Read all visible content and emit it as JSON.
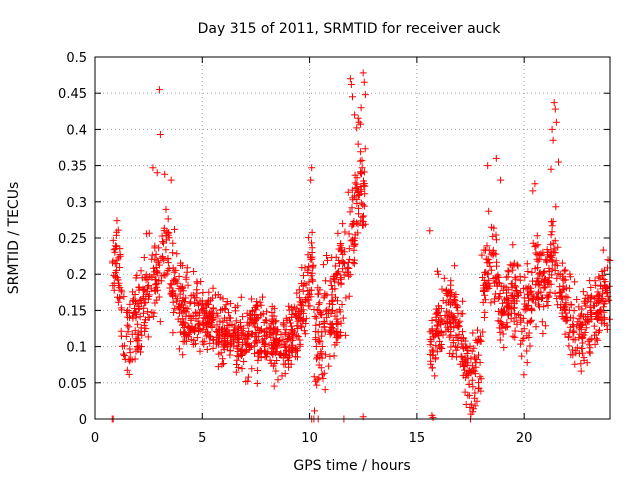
{
  "chart_data": {
    "type": "scatter",
    "title": "Day 315 of 2011, SRMTID for receiver auck",
    "xlabel": "GPS time / hours",
    "ylabel": "SRMTID / TECUs",
    "xlim": [
      0,
      24
    ],
    "ylim": [
      0,
      0.5
    ],
    "xticks": [
      0,
      5,
      10,
      15,
      20
    ],
    "xtick_labels": [
      "0",
      "5",
      "10",
      "15",
      "20"
    ],
    "yticks": [
      0,
      0.05,
      0.1,
      0.15,
      0.2,
      0.25,
      0.3,
      0.35,
      0.4,
      0.45,
      0.5
    ],
    "ytick_labels": [
      "0",
      "0.05",
      "0.1",
      "0.15",
      "0.2",
      "0.25",
      "0.3",
      "0.35",
      "0.4",
      "0.45",
      "0.5"
    ],
    "grid": true,
    "marker": "+",
    "color": "#ff0000",
    "series": [
      {
        "name": "SRMTID",
        "segments": [
          {
            "start": 0.8,
            "end": 4.0,
            "profile": [
              [
                0.8,
                0.2
              ],
              [
                1.0,
                0.22
              ],
              [
                1.3,
                0.15
              ],
              [
                1.6,
                0.12
              ],
              [
                2.0,
                0.15
              ],
              [
                2.5,
                0.18
              ],
              [
                3.0,
                0.2
              ],
              [
                3.3,
                0.25
              ],
              [
                3.6,
                0.2
              ],
              [
                4.0,
                0.16
              ]
            ],
            "n": 260,
            "spread": 0.06
          },
          {
            "start": 4.0,
            "end": 10.2,
            "profile": [
              [
                4.0,
                0.15
              ],
              [
                5.0,
                0.14
              ],
              [
                6.0,
                0.12
              ],
              [
                7.0,
                0.11
              ],
              [
                8.0,
                0.12
              ],
              [
                9.0,
                0.1
              ],
              [
                9.6,
                0.14
              ],
              [
                10.0,
                0.2
              ],
              [
                10.2,
                0.22
              ]
            ],
            "n": 620,
            "spread": 0.045
          },
          {
            "start": 10.2,
            "end": 12.6,
            "profile": [
              [
                10.2,
                0.1
              ],
              [
                10.6,
                0.12
              ],
              [
                11.0,
                0.15
              ],
              [
                11.5,
                0.2
              ],
              [
                12.0,
                0.26
              ],
              [
                12.3,
                0.32
              ],
              [
                12.6,
                0.3
              ]
            ],
            "n": 240,
            "spread": 0.08
          },
          {
            "start": 15.6,
            "end": 18.0,
            "profile": [
              [
                15.6,
                0.1
              ],
              [
                16.0,
                0.13
              ],
              [
                16.5,
                0.15
              ],
              [
                17.0,
                0.12
              ],
              [
                17.4,
                0.06
              ],
              [
                18.0,
                0.08
              ]
            ],
            "n": 230,
            "spread": 0.05
          },
          {
            "start": 18.0,
            "end": 24.0,
            "profile": [
              [
                18.0,
                0.18
              ],
              [
                18.5,
                0.22
              ],
              [
                19.0,
                0.15
              ],
              [
                19.5,
                0.18
              ],
              [
                20.0,
                0.13
              ],
              [
                20.5,
                0.2
              ],
              [
                21.0,
                0.18
              ],
              [
                21.3,
                0.25
              ],
              [
                21.6,
                0.2
              ],
              [
                22.0,
                0.15
              ],
              [
                22.5,
                0.11
              ],
              [
                23.0,
                0.14
              ],
              [
                23.5,
                0.17
              ],
              [
                24.0,
                0.19
              ]
            ],
            "n": 540,
            "spread": 0.055
          }
        ],
        "extreme_points": [
          [
            3.0,
            0.455
          ],
          [
            3.05,
            0.393
          ],
          [
            2.7,
            0.347
          ],
          [
            2.9,
            0.34
          ],
          [
            3.25,
            0.338
          ],
          [
            3.55,
            0.33
          ],
          [
            10.1,
            0.347
          ],
          [
            10.05,
            0.33
          ],
          [
            11.9,
            0.47
          ],
          [
            11.95,
            0.462
          ],
          [
            12.0,
            0.445
          ],
          [
            12.5,
            0.478
          ],
          [
            12.55,
            0.465
          ],
          [
            12.6,
            0.448
          ],
          [
            12.4,
            0.43
          ],
          [
            12.1,
            0.42
          ],
          [
            12.3,
            0.41
          ],
          [
            18.3,
            0.35
          ],
          [
            18.7,
            0.36
          ],
          [
            18.9,
            0.33
          ],
          [
            20.5,
            0.325
          ],
          [
            20.4,
            0.315
          ],
          [
            21.4,
            0.437
          ],
          [
            21.45,
            0.428
          ],
          [
            21.5,
            0.41
          ],
          [
            21.3,
            0.4
          ],
          [
            21.35,
            0.385
          ],
          [
            21.6,
            0.355
          ],
          [
            21.25,
            0.345
          ],
          [
            0.8,
            0.0
          ],
          [
            0.85,
            0.0
          ],
          [
            10.1,
            0.0
          ],
          [
            10.2,
            0.0
          ],
          [
            10.4,
            0.0
          ],
          [
            11.6,
            0.0
          ],
          [
            12.5,
            0.003
          ],
          [
            15.7,
            0.005
          ],
          [
            15.75,
            0.002
          ],
          [
            17.5,
            0.0
          ],
          [
            17.6,
            0.01
          ],
          [
            17.3,
            0.02
          ],
          [
            15.6,
            0.26
          ],
          [
            16.0,
            0.2
          ]
        ]
      }
    ]
  }
}
